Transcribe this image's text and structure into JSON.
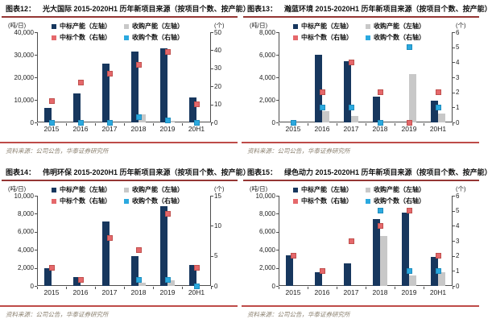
{
  "page": {
    "background": "#ffffff"
  },
  "colors": {
    "navy": "#17375E",
    "gray": "#C8C8C8",
    "red": "#E5686B",
    "red_border": "#C0504D",
    "lightblue": "#2BA9DF",
    "lightblue_border": "#1E8DBE",
    "title_rule": "#943634",
    "source_rule": "#BE4B48",
    "axis": "#4d4d4d",
    "text": "#111111",
    "source_text": "#8B8170"
  },
  "chart_data": [
    {
      "type": "bar+scatter",
      "figure_label": "图表12：",
      "title": "光大国际 2015-2020H1 历年新项目来源（按项目个数、按产能）",
      "left_axis_unit": "(吨/日)",
      "right_axis_unit": "(个)",
      "left_axis": {
        "min": 0,
        "max": 40000,
        "tick_labels": [
          "40,000",
          "30,000",
          "20,000",
          "10,000",
          "0"
        ]
      },
      "right_axis": {
        "min": 0,
        "max": 50,
        "tick_labels": [
          "50",
          "40",
          "30",
          "20",
          "10",
          "0"
        ]
      },
      "categories": [
        "2015",
        "2016",
        "2017",
        "2018",
        "2019",
        "20H1"
      ],
      "grid": false,
      "legend_position": "top",
      "series": [
        {
          "key": "tender-capacity",
          "name": "中标产能（左轴）",
          "type": "bar",
          "axis": "left",
          "color": "navy",
          "values": [
            6300,
            12800,
            26200,
            31500,
            32700,
            11200
          ]
        },
        {
          "key": "acquired-capacity",
          "name": "收购产能（左轴）",
          "type": "bar",
          "axis": "left",
          "color": "gray",
          "values": [
            0,
            0,
            0,
            3500,
            700,
            0
          ]
        },
        {
          "key": "tender-count",
          "name": "中标个数（右轴）",
          "type": "scatter",
          "axis": "right",
          "color": "red",
          "values": [
            12,
            22,
            27,
            32,
            39,
            10
          ]
        },
        {
          "key": "acquired-count",
          "name": "收购个数（右轴）",
          "type": "scatter",
          "axis": "right",
          "color": "lightblue",
          "values": [
            0,
            0,
            0,
            3,
            1,
            0
          ]
        }
      ],
      "source": "资料来源：公司公告，华泰证券研究所"
    },
    {
      "type": "bar+scatter",
      "figure_label": "图表13：",
      "title": "瀚蓝环境 2015-2020H1 历年新项目来源（按项目个数、按产能）",
      "left_axis_unit": "(吨/日)",
      "right_axis_unit": "(个)",
      "left_axis": {
        "min": 0,
        "max": 8000,
        "tick_labels": [
          "8,000",
          "6,000",
          "4,000",
          "2,000",
          "0"
        ]
      },
      "right_axis": {
        "min": 0,
        "max": 6,
        "tick_labels": [
          "6",
          "5",
          "4",
          "3",
          "2",
          "1",
          "0"
        ]
      },
      "categories": [
        "2015",
        "2016",
        "2017",
        "2018",
        "2019",
        "20H1"
      ],
      "grid": false,
      "legend_position": "top",
      "series": [
        {
          "key": "tender-capacity",
          "name": "中标产能（左轴）",
          "type": "bar",
          "axis": "left",
          "color": "navy",
          "values": [
            0,
            6000,
            5400,
            2300,
            0,
            1900
          ]
        },
        {
          "key": "acquired-capacity",
          "name": "收购产能（左轴）",
          "type": "bar",
          "axis": "left",
          "color": "gray",
          "values": [
            0,
            1000,
            600,
            0,
            4300,
            800
          ]
        },
        {
          "key": "tender-count",
          "name": "中标个数（右轴）",
          "type": "scatter",
          "axis": "right",
          "color": "red",
          "values": [
            null,
            2,
            4,
            2,
            0,
            2
          ]
        },
        {
          "key": "acquired-count",
          "name": "收购个数（右轴）",
          "type": "scatter",
          "axis": "right",
          "color": "lightblue",
          "values": [
            0,
            1,
            1,
            0,
            5,
            1
          ]
        }
      ],
      "source": "资料来源：公司公告，华泰证券研究所"
    },
    {
      "type": "bar+scatter",
      "figure_label": "图表14：",
      "title": "伟明环保 2015-2020H1 历年新项目来源（按项目个数、按产能）",
      "left_axis_unit": "(吨/日)",
      "right_axis_unit": "(个)",
      "left_axis": {
        "min": 0,
        "max": 10000,
        "tick_labels": [
          "10,000",
          "8,000",
          "6,000",
          "4,000",
          "2,000",
          "0"
        ]
      },
      "right_axis": {
        "min": 0,
        "max": 15,
        "tick_labels": [
          "15",
          "10",
          "5",
          "0"
        ]
      },
      "categories": [
        "2015",
        "2016",
        "2017",
        "2018",
        "2019",
        "20H1"
      ],
      "grid": false,
      "legend_position": "top",
      "series": [
        {
          "key": "tender-capacity",
          "name": "中标产能（左轴）",
          "type": "bar",
          "axis": "left",
          "color": "navy",
          "values": [
            2000,
            1000,
            7100,
            3300,
            8800,
            2300
          ]
        },
        {
          "key": "acquired-capacity",
          "name": "收购产能（左轴）",
          "type": "bar",
          "axis": "left",
          "color": "gray",
          "values": [
            0,
            0,
            0,
            400,
            600,
            0
          ]
        },
        {
          "key": "tender-count",
          "name": "中标个数（右轴）",
          "type": "scatter",
          "axis": "right",
          "color": "red",
          "values": [
            3,
            1,
            8,
            6,
            12,
            3
          ]
        },
        {
          "key": "acquired-count",
          "name": "收购个数（右轴）",
          "type": "scatter",
          "axis": "right",
          "color": "lightblue",
          "values": [
            null,
            null,
            null,
            1,
            1,
            0
          ]
        }
      ],
      "source": "资料来源：公司公告，华泰证券研究所"
    },
    {
      "type": "bar+scatter",
      "figure_label": "图表15：",
      "title": "绿色动力 2015-2020H1 历年新项目来源（按项目个数、按产能）",
      "left_axis_unit": "(吨/日)",
      "right_axis_unit": "(个)",
      "left_axis": {
        "min": 0,
        "max": 10000,
        "tick_labels": [
          "10,000",
          "8,000",
          "6,000",
          "4,000",
          "2,000",
          "0"
        ]
      },
      "right_axis": {
        "min": 0,
        "max": 6,
        "tick_labels": [
          "6",
          "5",
          "4",
          "3",
          "2",
          "1",
          "0"
        ]
      },
      "categories": [
        "2015",
        "2016",
        "2017",
        "2018",
        "2019",
        "20H1"
      ],
      "grid": false,
      "legend_position": "top",
      "series": [
        {
          "key": "tender-capacity",
          "name": "中标产能（左轴）",
          "type": "bar",
          "axis": "left",
          "color": "navy",
          "values": [
            3400,
            1500,
            2500,
            7400,
            8100,
            3200
          ]
        },
        {
          "key": "acquired-capacity",
          "name": "收购产能（左轴）",
          "type": "bar",
          "axis": "left",
          "color": "gray",
          "values": [
            0,
            0,
            0,
            5500,
            1200,
            1500
          ]
        },
        {
          "key": "tender-count",
          "name": "中标个数（右轴）",
          "type": "scatter",
          "axis": "right",
          "color": "red",
          "values": [
            2,
            1,
            3,
            4,
            5,
            2
          ]
        },
        {
          "key": "acquired-count",
          "name": "收购个数（右轴）",
          "type": "scatter",
          "axis": "right",
          "color": "lightblue",
          "values": [
            null,
            null,
            null,
            5,
            1,
            1
          ]
        }
      ],
      "source": "资料来源：公司公告，华泰证券研究所"
    }
  ]
}
